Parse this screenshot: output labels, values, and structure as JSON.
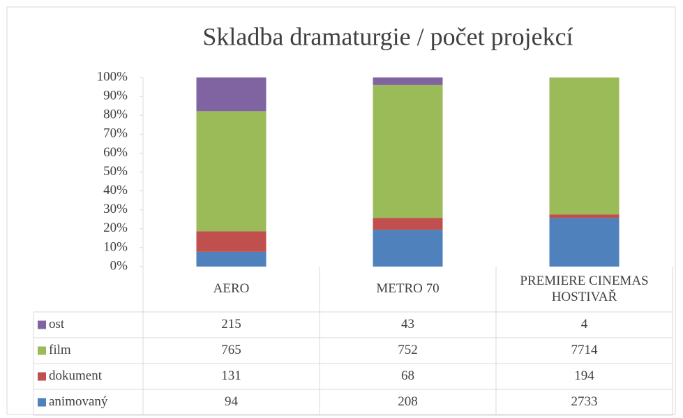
{
  "chart_data": {
    "type": "bar",
    "stacking": "percent",
    "title": "Skladba dramaturgie / počet projekcí",
    "categories": [
      "AERO",
      "METRO 70",
      "PREMIERE CINEMAS HOSTIVAŘ"
    ],
    "series": [
      {
        "name": "animovaný",
        "color": "#4f81bd",
        "values": [
          94,
          208,
          2733
        ]
      },
      {
        "name": "dokument",
        "color": "#c0504d",
        "values": [
          131,
          68,
          194
        ]
      },
      {
        "name": "film",
        "color": "#9bbb59",
        "values": [
          765,
          752,
          7714
        ]
      },
      {
        "name": "ost",
        "color": "#8064a2",
        "values": [
          215,
          43,
          4
        ]
      }
    ],
    "ylim": [
      0,
      100
    ],
    "yticks": [
      {
        "value": 0,
        "label": "0%"
      },
      {
        "value": 10,
        "label": "10%"
      },
      {
        "value": 20,
        "label": "20%"
      },
      {
        "value": 30,
        "label": "30%"
      },
      {
        "value": 40,
        "label": "40%"
      },
      {
        "value": 50,
        "label": "50%"
      },
      {
        "value": 60,
        "label": "60%"
      },
      {
        "value": 70,
        "label": "70%"
      },
      {
        "value": 80,
        "label": "80%"
      },
      {
        "value": 90,
        "label": "90%"
      },
      {
        "value": 100,
        "label": "100%"
      }
    ],
    "grid": false,
    "data_table": true
  }
}
